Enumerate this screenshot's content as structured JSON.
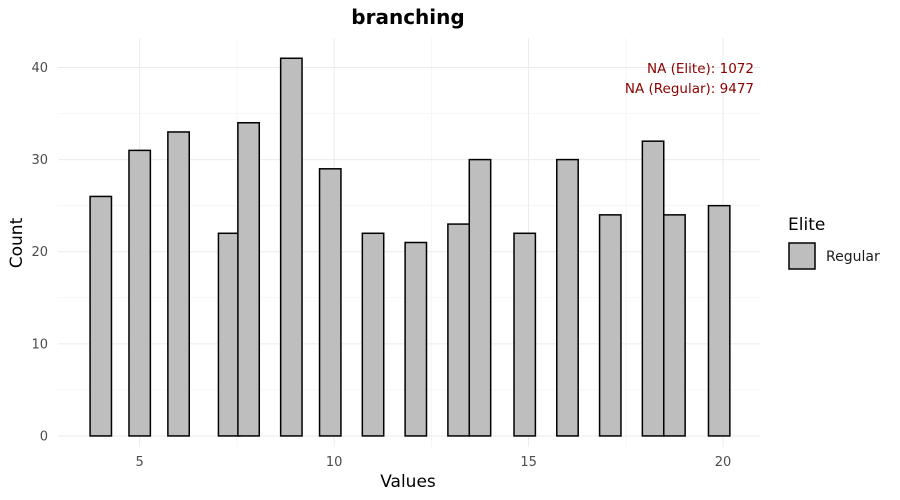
{
  "chart_data": {
    "type": "bar",
    "title": "branching",
    "xlabel": "Values",
    "ylabel": "Count",
    "xlim": [
      2.9,
      20.95
    ],
    "ylim": [
      -1.2,
      43.2
    ],
    "x_ticks": [
      5,
      10,
      15,
      20
    ],
    "x_tick_labels": [
      "5",
      "10",
      "15",
      "20"
    ],
    "y_ticks": [
      0,
      10,
      20,
      30,
      40
    ],
    "y_tick_labels": [
      "0",
      "10",
      "20",
      "30",
      "40"
    ],
    "bar_width": 0.55,
    "grid": true,
    "series": [
      {
        "name": "Regular",
        "color": "#bebebe",
        "x": [
          4.0,
          5.0,
          6.0,
          7.3,
          7.8,
          8.9,
          9.9,
          11.0,
          12.1,
          13.2,
          13.75,
          14.9,
          16.0,
          17.1,
          18.2,
          18.75,
          19.9
        ],
        "values": [
          26,
          31,
          33,
          22,
          34,
          41,
          29,
          22,
          21,
          23,
          30,
          22,
          30,
          24,
          32,
          24,
          25
        ]
      }
    ],
    "annotations": [
      "NA (Elite): 1072",
      "NA (Regular): 9477"
    ],
    "annotation_color": "#8b0000",
    "legend": {
      "title": "Elite",
      "entries": [
        "Regular"
      ],
      "position": "right"
    }
  }
}
